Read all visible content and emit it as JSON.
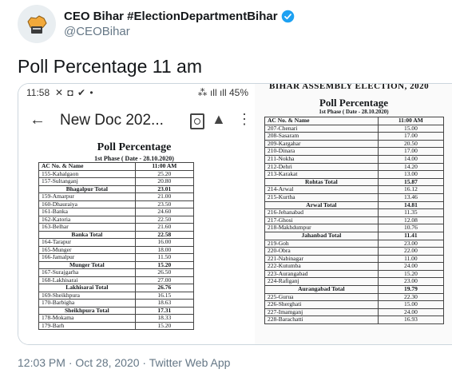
{
  "account": {
    "name": "CEO Bihar #ElectionDepartmentBihar",
    "handle": "@CEOBihar",
    "avatar_icon": "bihar-map-icon",
    "verified_icon": "verified-badge-icon",
    "verified_color": "#1da1f2"
  },
  "tweet": {
    "text": "Poll Percentage 11 am",
    "footer": "12:03 PM · Oct 28, 2020 · Twitter Web App"
  },
  "phone": {
    "time": "11:58",
    "status_icons": "✕ ◘ ✔ •",
    "right_status": "⁂ ıll ıll 45%",
    "doc_title": "New Doc 202...",
    "back_icon": "arrow-left-icon",
    "search_icon": "find-in-doc-icon",
    "drive_icon": "drive-add-icon",
    "more_icon": "more-vert-icon"
  },
  "left_doc": {
    "heading": "Poll Percentage",
    "subheading": "1st Phase ( Date - 28.10.2020)",
    "col_name": "AC No. & Name",
    "col_value": "11:00 AM",
    "rows": [
      {
        "name": "155-Kahalgaon",
        "value": "25.20"
      },
      {
        "name": "157-Sultanganj",
        "value": "20.80"
      },
      {
        "name": "Bhagalpur Total",
        "value": "23.01",
        "total": true
      },
      {
        "name": "159-Amarpur",
        "value": "21.00"
      },
      {
        "name": "160-Dhauraiya",
        "value": "23.50"
      },
      {
        "name": "161-Banka",
        "value": "24.60"
      },
      {
        "name": "162-Katoria",
        "value": "22.50"
      },
      {
        "name": "163-Belhar",
        "value": "21.60"
      },
      {
        "name": "Banka Total",
        "value": "22.58",
        "total": true
      },
      {
        "name": "164-Tarapur",
        "value": "16.00"
      },
      {
        "name": "165-Munger",
        "value": "18.00"
      },
      {
        "name": "166-Jamalpur",
        "value": "11.50"
      },
      {
        "name": "Munger Total",
        "value": "15.20",
        "total": true
      },
      {
        "name": "167-Surajgarha",
        "value": "26.50"
      },
      {
        "name": "168-Lakhisarai",
        "value": "27.00"
      },
      {
        "name": "Lakhisarai Total",
        "value": "26.76",
        "total": true
      },
      {
        "name": "169-Sheikhpura",
        "value": "16.15"
      },
      {
        "name": "170-Barbigha",
        "value": "18.63"
      },
      {
        "name": "Sheikhpura Total",
        "value": "17.31",
        "total": true
      },
      {
        "name": "178-Mokama",
        "value": "18.33"
      },
      {
        "name": "179-Barh",
        "value": "15.20"
      }
    ]
  },
  "right_doc": {
    "cut_title": "BIHAR ASSEMBLY ELECTION, 2020",
    "heading": "Poll Percentage",
    "subheading": "1st Phase ( Date - 28.10.2020)",
    "col_name": "AC No. & Name",
    "col_value": "11:00 AM",
    "rows": [
      {
        "name": "207-Chenari",
        "value": "15.00"
      },
      {
        "name": "208-Sasaram",
        "value": "17.00"
      },
      {
        "name": "209-Kargahar",
        "value": "20.50"
      },
      {
        "name": "210-Dinara",
        "value": "17.00"
      },
      {
        "name": "211-Nokha",
        "value": "14.00"
      },
      {
        "name": "212-Dehri",
        "value": "14.20"
      },
      {
        "name": "213-Karakat",
        "value": "13.00"
      },
      {
        "name": "Rohtas Total",
        "value": "15.87",
        "total": true
      },
      {
        "name": "214-Arwal",
        "value": "16.12"
      },
      {
        "name": "215-Kurtha",
        "value": "13.46"
      },
      {
        "name": "Arwal Total",
        "value": "14.81",
        "total": true
      },
      {
        "name": "216-Jehanabad",
        "value": "11.35"
      },
      {
        "name": "217-Ghosi",
        "value": "12.08"
      },
      {
        "name": "218-Makhdumpur",
        "value": "10.76"
      },
      {
        "name": "Jahanbad Total",
        "value": "11.41",
        "total": true
      },
      {
        "name": "219-Goh",
        "value": "23.00"
      },
      {
        "name": "220-Obra",
        "value": "22.00"
      },
      {
        "name": "221-Nabinagar",
        "value": "11.00"
      },
      {
        "name": "222-Kutumba",
        "value": "24.00"
      },
      {
        "name": "223-Aurangabad",
        "value": "15.20"
      },
      {
        "name": "224-Rafiganj",
        "value": "23.00"
      },
      {
        "name": "Aurangabad Total",
        "value": "19.79",
        "total": true
      },
      {
        "name": "225-Gurua",
        "value": "22.30"
      },
      {
        "name": "226-Sherghati",
        "value": "15.00"
      },
      {
        "name": "227-Imamganj",
        "value": "24.00"
      },
      {
        "name": "228-Barachatti",
        "value": "16.93"
      }
    ]
  }
}
